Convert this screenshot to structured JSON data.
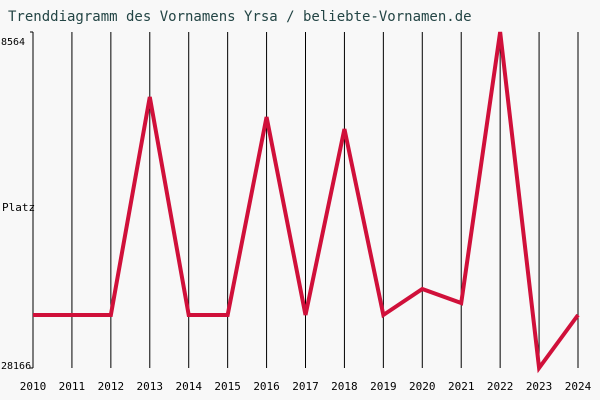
{
  "chart_data": {
    "type": "line",
    "title": "Trenddiagramm des Vornamens Yrsa / beliebte-Vornamen.de",
    "y_label": "Platz",
    "x": [
      2010,
      2011,
      2012,
      2013,
      2014,
      2015,
      2016,
      2017,
      2018,
      2019,
      2020,
      2021,
      2022,
      2023,
      2024
    ],
    "series": [
      {
        "name": "Yrsa",
        "color": "#d0103a",
        "values": [
          25074,
          25074,
          25074,
          12356,
          25074,
          25074,
          13523,
          25074,
          14223,
          25074,
          23557,
          24374,
          8564,
          28166,
          25074
        ]
      }
    ],
    "ylim": [
      28166,
      8564
    ],
    "yticks": [
      8564,
      28166
    ],
    "xlim": [
      2010,
      2024
    ],
    "xticks": [
      2010,
      2011,
      2012,
      2013,
      2014,
      2015,
      2016,
      2017,
      2018,
      2019,
      2020,
      2021,
      2022,
      2023,
      2024
    ],
    "grid": true
  }
}
